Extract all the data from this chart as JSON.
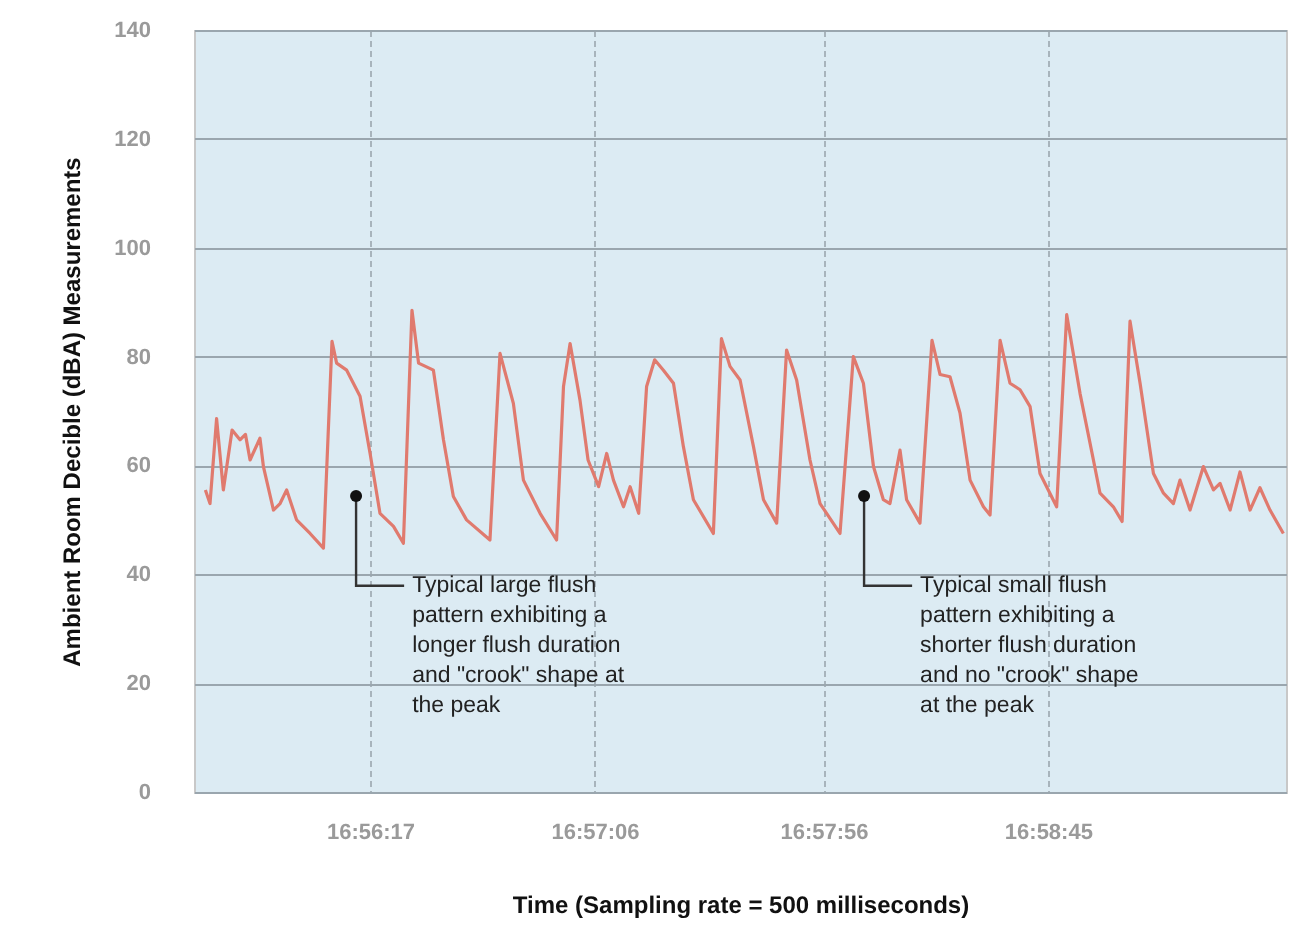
{
  "chart_data": {
    "type": "line",
    "xlabel": "Time (Sampling rate = 500 milliseconds)",
    "ylabel": "Ambient Room Decible (dBA) Measurements",
    "x": [
      16.92807,
      16.92835,
      16.92875,
      16.92916,
      16.92969,
      16.93017,
      16.9305,
      16.93078,
      16.93138,
      16.93159,
      16.9322,
      16.9326,
      16.933,
      16.9336,
      16.93442,
      16.93523,
      16.93575,
      16.93603,
      16.93664,
      16.93745,
      16.93806,
      16.93866,
      16.93948,
      16.94008,
      16.9406,
      16.941,
      16.9419,
      16.94251,
      16.94311,
      16.94391,
      16.94533,
      16.94594,
      16.94675,
      16.94736,
      16.94837,
      16.94937,
      16.94979,
      16.95019,
      16.95079,
      16.95128,
      16.95192,
      16.95241,
      16.95282,
      16.95343,
      16.95383,
      16.95435,
      16.95483,
      16.95532,
      16.95585,
      16.95646,
      16.95706,
      16.95767,
      16.95888,
      16.95937,
      16.95989,
      16.9605,
      16.96131,
      16.96192,
      16.96272,
      16.96332,
      16.96393,
      16.96474,
      16.96535,
      16.96656,
      16.96737,
      16.96798,
      16.96859,
      16.96919,
      16.96959,
      16.9702,
      16.9706,
      16.97141,
      16.97214,
      16.97263,
      16.97323,
      16.97384,
      16.97445,
      16.97526,
      16.97566,
      16.97627,
      16.97687,
      16.97748,
      16.97809,
      16.97869,
      16.9797,
      16.98031,
      16.98112,
      16.98193,
      16.98233,
      16.98314,
      16.98367,
      16.98415,
      16.98476,
      16.98557,
      16.98618,
      16.98678,
      16.98718,
      16.98779,
      16.9886,
      16.98921,
      16.98961,
      16.99022,
      16.99082,
      16.99143,
      16.99203,
      16.99264,
      16.99345
    ],
    "series": [
      {
        "color": "#e07a6e",
        "values": [
          55.5,
          53,
          68.6,
          55.5,
          66.5,
          64.7,
          65.7,
          61,
          65,
          59.8,
          51.8,
          53,
          55.5,
          50,
          47.5,
          44.8,
          82.8,
          78.8,
          77.5,
          72.7,
          62.2,
          51.2,
          48.8,
          45.7,
          88.5,
          78.8,
          77.5,
          64.7,
          54.3,
          50,
          46.3,
          80.6,
          71.4,
          57.3,
          51.2,
          46.3,
          74.5,
          82.4,
          72,
          61,
          56.1,
          62.2,
          57.3,
          52.4,
          56.1,
          51.2,
          74.5,
          79.4,
          77.5,
          75.1,
          63.5,
          53.7,
          47.5,
          83.3,
          78.2,
          75.7,
          63.5,
          53.7,
          49.4,
          81.2,
          75.7,
          61,
          53,
          47.5,
          80,
          75.1,
          59.8,
          53.7,
          53,
          62.8,
          53.7,
          49.4,
          83,
          76.7,
          76.3,
          69.6,
          57.3,
          52.4,
          50.9,
          83,
          75.1,
          73.9,
          70.8,
          58.5,
          52.4,
          87.7,
          73.2,
          61,
          54.9,
          52.4,
          49.7,
          86.5,
          75.1,
          58.5,
          54.9,
          53,
          57.3,
          51.8,
          59.8,
          55.5,
          56.7,
          51.8,
          58.8,
          51.8,
          55.9,
          51.8,
          47.5
        ]
      }
    ],
    "xlim": [
      16.92738,
      16.99361
    ],
    "xticks": [
      {
        "value": 16.938056,
        "label": "16:56:17"
      },
      {
        "value": 16.951667,
        "label": "16:57:06"
      },
      {
        "value": 16.965556,
        "label": "16:57:56"
      },
      {
        "value": 16.979167,
        "label": "16:58:45"
      }
    ],
    "ylim": [
      0,
      140
    ],
    "yticks": [
      0,
      20,
      40,
      60,
      80,
      100,
      120,
      140
    ],
    "grid": true,
    "annotations": [
      {
        "text": "Typical large flush pattern exhibiting a longer flush duration and \"crook\" shape at the peak",
        "x": 16.93721,
        "y": 54.4
      },
      {
        "text": "Typical small flush pattern exhibiting a shorter flush duration and no \"crook\" shape at the peak",
        "x": 16.96802,
        "y": 54.4
      }
    ]
  }
}
